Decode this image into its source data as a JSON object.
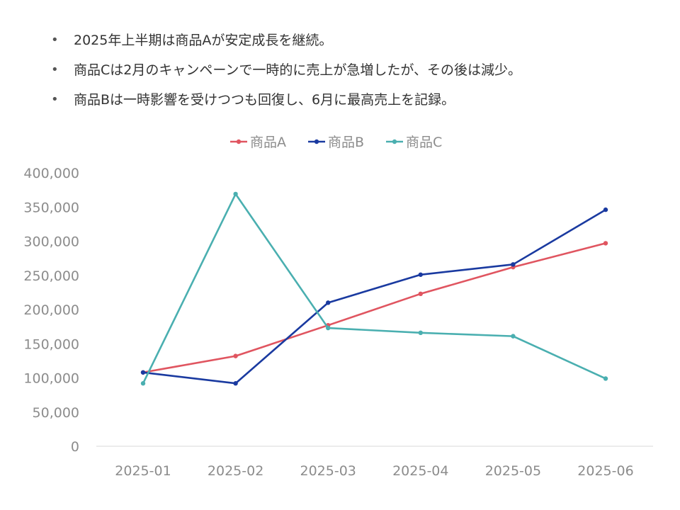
{
  "bullets": [
    "2025年上半期は商品Aが安定成長を継続。",
    "商品Cは2月のキャンペーンで一時的に売上が急増したが、その後は減少。",
    "商品Bは一時影響を受けつつも回復し、6月に最高売上を記録。"
  ],
  "chart_data": {
    "type": "line",
    "categories": [
      "2025-01",
      "2025-02",
      "2025-03",
      "2025-04",
      "2025-05",
      "2025-06"
    ],
    "series": [
      {
        "name": "商品A",
        "color": "#e05560",
        "values": [
          108000,
          132000,
          177000,
          223000,
          262000,
          297000
        ]
      },
      {
        "name": "商品B",
        "color": "#1a3aa0",
        "values": [
          108000,
          92000,
          210000,
          251000,
          266000,
          346000
        ]
      },
      {
        "name": "商品C",
        "color": "#4aafb0",
        "values": [
          92000,
          369000,
          173000,
          166000,
          161000,
          99000
        ]
      }
    ],
    "ylim": [
      0,
      400000
    ],
    "yticks": [
      "0",
      "50,000",
      "100,000",
      "150,000",
      "200,000",
      "250,000",
      "300,000",
      "350,000",
      "400,000"
    ],
    "grid": false,
    "legend_position": "top"
  }
}
